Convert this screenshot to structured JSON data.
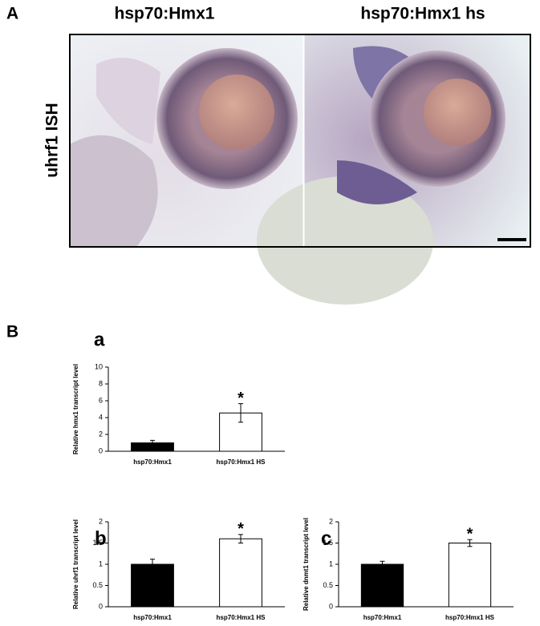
{
  "panels": {
    "A": {
      "label": "A",
      "titles": [
        "hsp70:Hmx1",
        "hsp70:Hmx1 hs"
      ],
      "ylabel": "uhrf1 ISH"
    },
    "B": {
      "label": "B"
    }
  },
  "chart_data": [
    {
      "type": "bar",
      "panel": "a",
      "ylabel": "Relative hmx1 transcript level",
      "categories": [
        "hsp70:Hmx1",
        "hsp70:Hmx1 HS"
      ],
      "values": [
        1,
        4.55
      ],
      "errors": [
        0.3,
        1.1
      ],
      "colors": [
        "#000000",
        "#ffffff"
      ],
      "annotation": {
        "text": "*",
        "category": "hsp70:Hmx1 HS"
      },
      "ylim": [
        0,
        10
      ],
      "yticks": [
        0,
        2,
        4,
        6,
        8,
        10
      ]
    },
    {
      "type": "bar",
      "panel": "b",
      "ylabel": "Relative uhrf1 transcript level",
      "categories": [
        "hsp70:Hmx1",
        "hsp70:Hmx1 HS"
      ],
      "values": [
        1,
        1.6
      ],
      "errors": [
        0.12,
        0.1
      ],
      "colors": [
        "#000000",
        "#ffffff"
      ],
      "annotation": {
        "text": "*",
        "category": "hsp70:Hmx1 HS"
      },
      "ylim": [
        0,
        2
      ],
      "yticks": [
        0,
        0.5,
        1,
        1.5,
        2
      ]
    },
    {
      "type": "bar",
      "panel": "c",
      "ylabel": "Relative dnmt1 transcript level",
      "categories": [
        "hsp70:Hmx1",
        "hsp70:Hmx1 HS"
      ],
      "values": [
        1,
        1.5
      ],
      "errors": [
        0.07,
        0.08
      ],
      "colors": [
        "#000000",
        "#ffffff"
      ],
      "annotation": {
        "text": "*",
        "category": "hsp70:Hmx1 HS"
      },
      "ylim": [
        0,
        2
      ],
      "yticks": [
        0,
        0.5,
        1,
        1.5,
        2
      ]
    }
  ]
}
